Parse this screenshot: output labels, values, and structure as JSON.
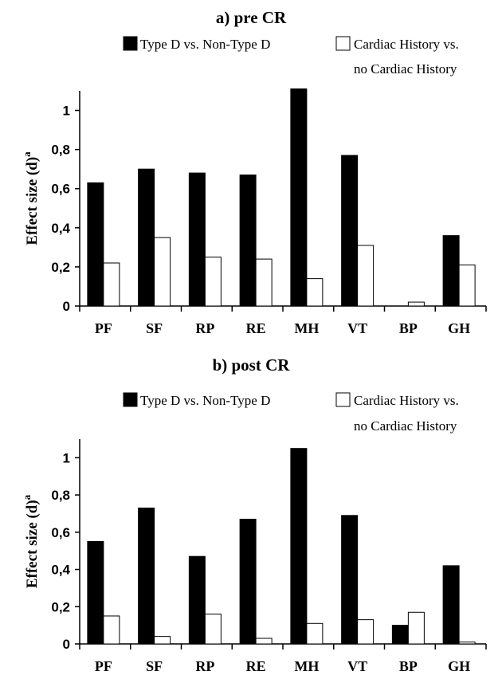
{
  "chart_data": [
    {
      "type": "bar",
      "title": "a) pre CR",
      "ylabel": "Effect size (d)",
      "ylabel_superscript": "a",
      "categories": [
        "PF",
        "SF",
        "RP",
        "RE",
        "MH",
        "VT",
        "BP",
        "GH"
      ],
      "series": [
        {
          "name": "Type D vs. Non-Type D",
          "color": "#000000",
          "values": [
            0.63,
            0.7,
            0.68,
            0.67,
            1.11,
            0.77,
            0.0,
            0.36
          ]
        },
        {
          "name": "Cardiac History vs. no Cardiac History",
          "color": "#ffffff",
          "values": [
            0.22,
            0.35,
            0.25,
            0.24,
            0.14,
            0.31,
            0.02,
            0.21
          ]
        }
      ],
      "yticks": [
        "0",
        "0,2",
        "0,4",
        "0,6",
        "0,8",
        "1"
      ],
      "ylim": [
        0,
        1.1
      ],
      "legend": "top"
    },
    {
      "type": "bar",
      "title": "b) post CR",
      "ylabel": "Effect size (d)",
      "ylabel_superscript": "a",
      "categories": [
        "PF",
        "SF",
        "RP",
        "RE",
        "MH",
        "VT",
        "BP",
        "GH"
      ],
      "series": [
        {
          "name": "Type D vs. Non-Type D",
          "color": "#000000",
          "values": [
            0.55,
            0.73,
            0.47,
            0.67,
            1.05,
            0.69,
            0.1,
            0.42
          ]
        },
        {
          "name": "Cardiac History vs. no Cardiac History",
          "color": "#ffffff",
          "values": [
            0.15,
            0.04,
            0.16,
            0.03,
            0.11,
            0.13,
            0.17,
            0.01
          ]
        }
      ],
      "yticks": [
        "0",
        "0,2",
        "0,4",
        "0,6",
        "0,8",
        "1"
      ],
      "ylim": [
        0,
        1.1
      ],
      "legend": "top"
    }
  ],
  "legend_labels": {
    "series1": "Type D vs. Non-Type D",
    "series2_line1": "Cardiac History vs.",
    "series2_line2": "no Cardiac History"
  }
}
